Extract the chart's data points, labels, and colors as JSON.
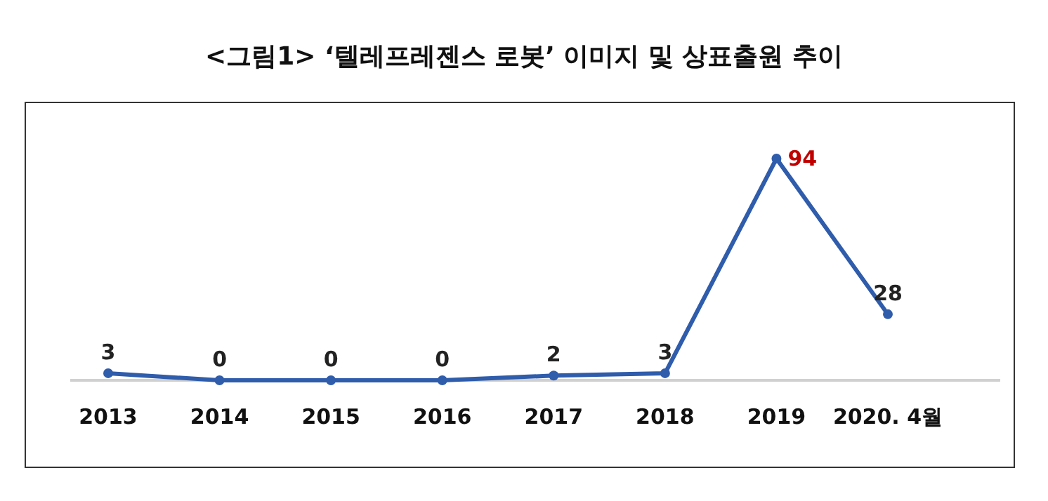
{
  "chart_data": {
    "type": "line",
    "title": "<그림1> ‘텔레프레젠스 로봇’ 이미지 및 상표출원 추이",
    "categories": [
      "2013",
      "2014",
      "2015",
      "2016",
      "2017",
      "2018",
      "2019",
      "2020. 4월"
    ],
    "values": [
      3,
      0,
      0,
      0,
      2,
      3,
      94,
      28
    ],
    "color": "#2f5cab",
    "marker": "circle",
    "line_style": "solid",
    "data_labels": true
  }
}
